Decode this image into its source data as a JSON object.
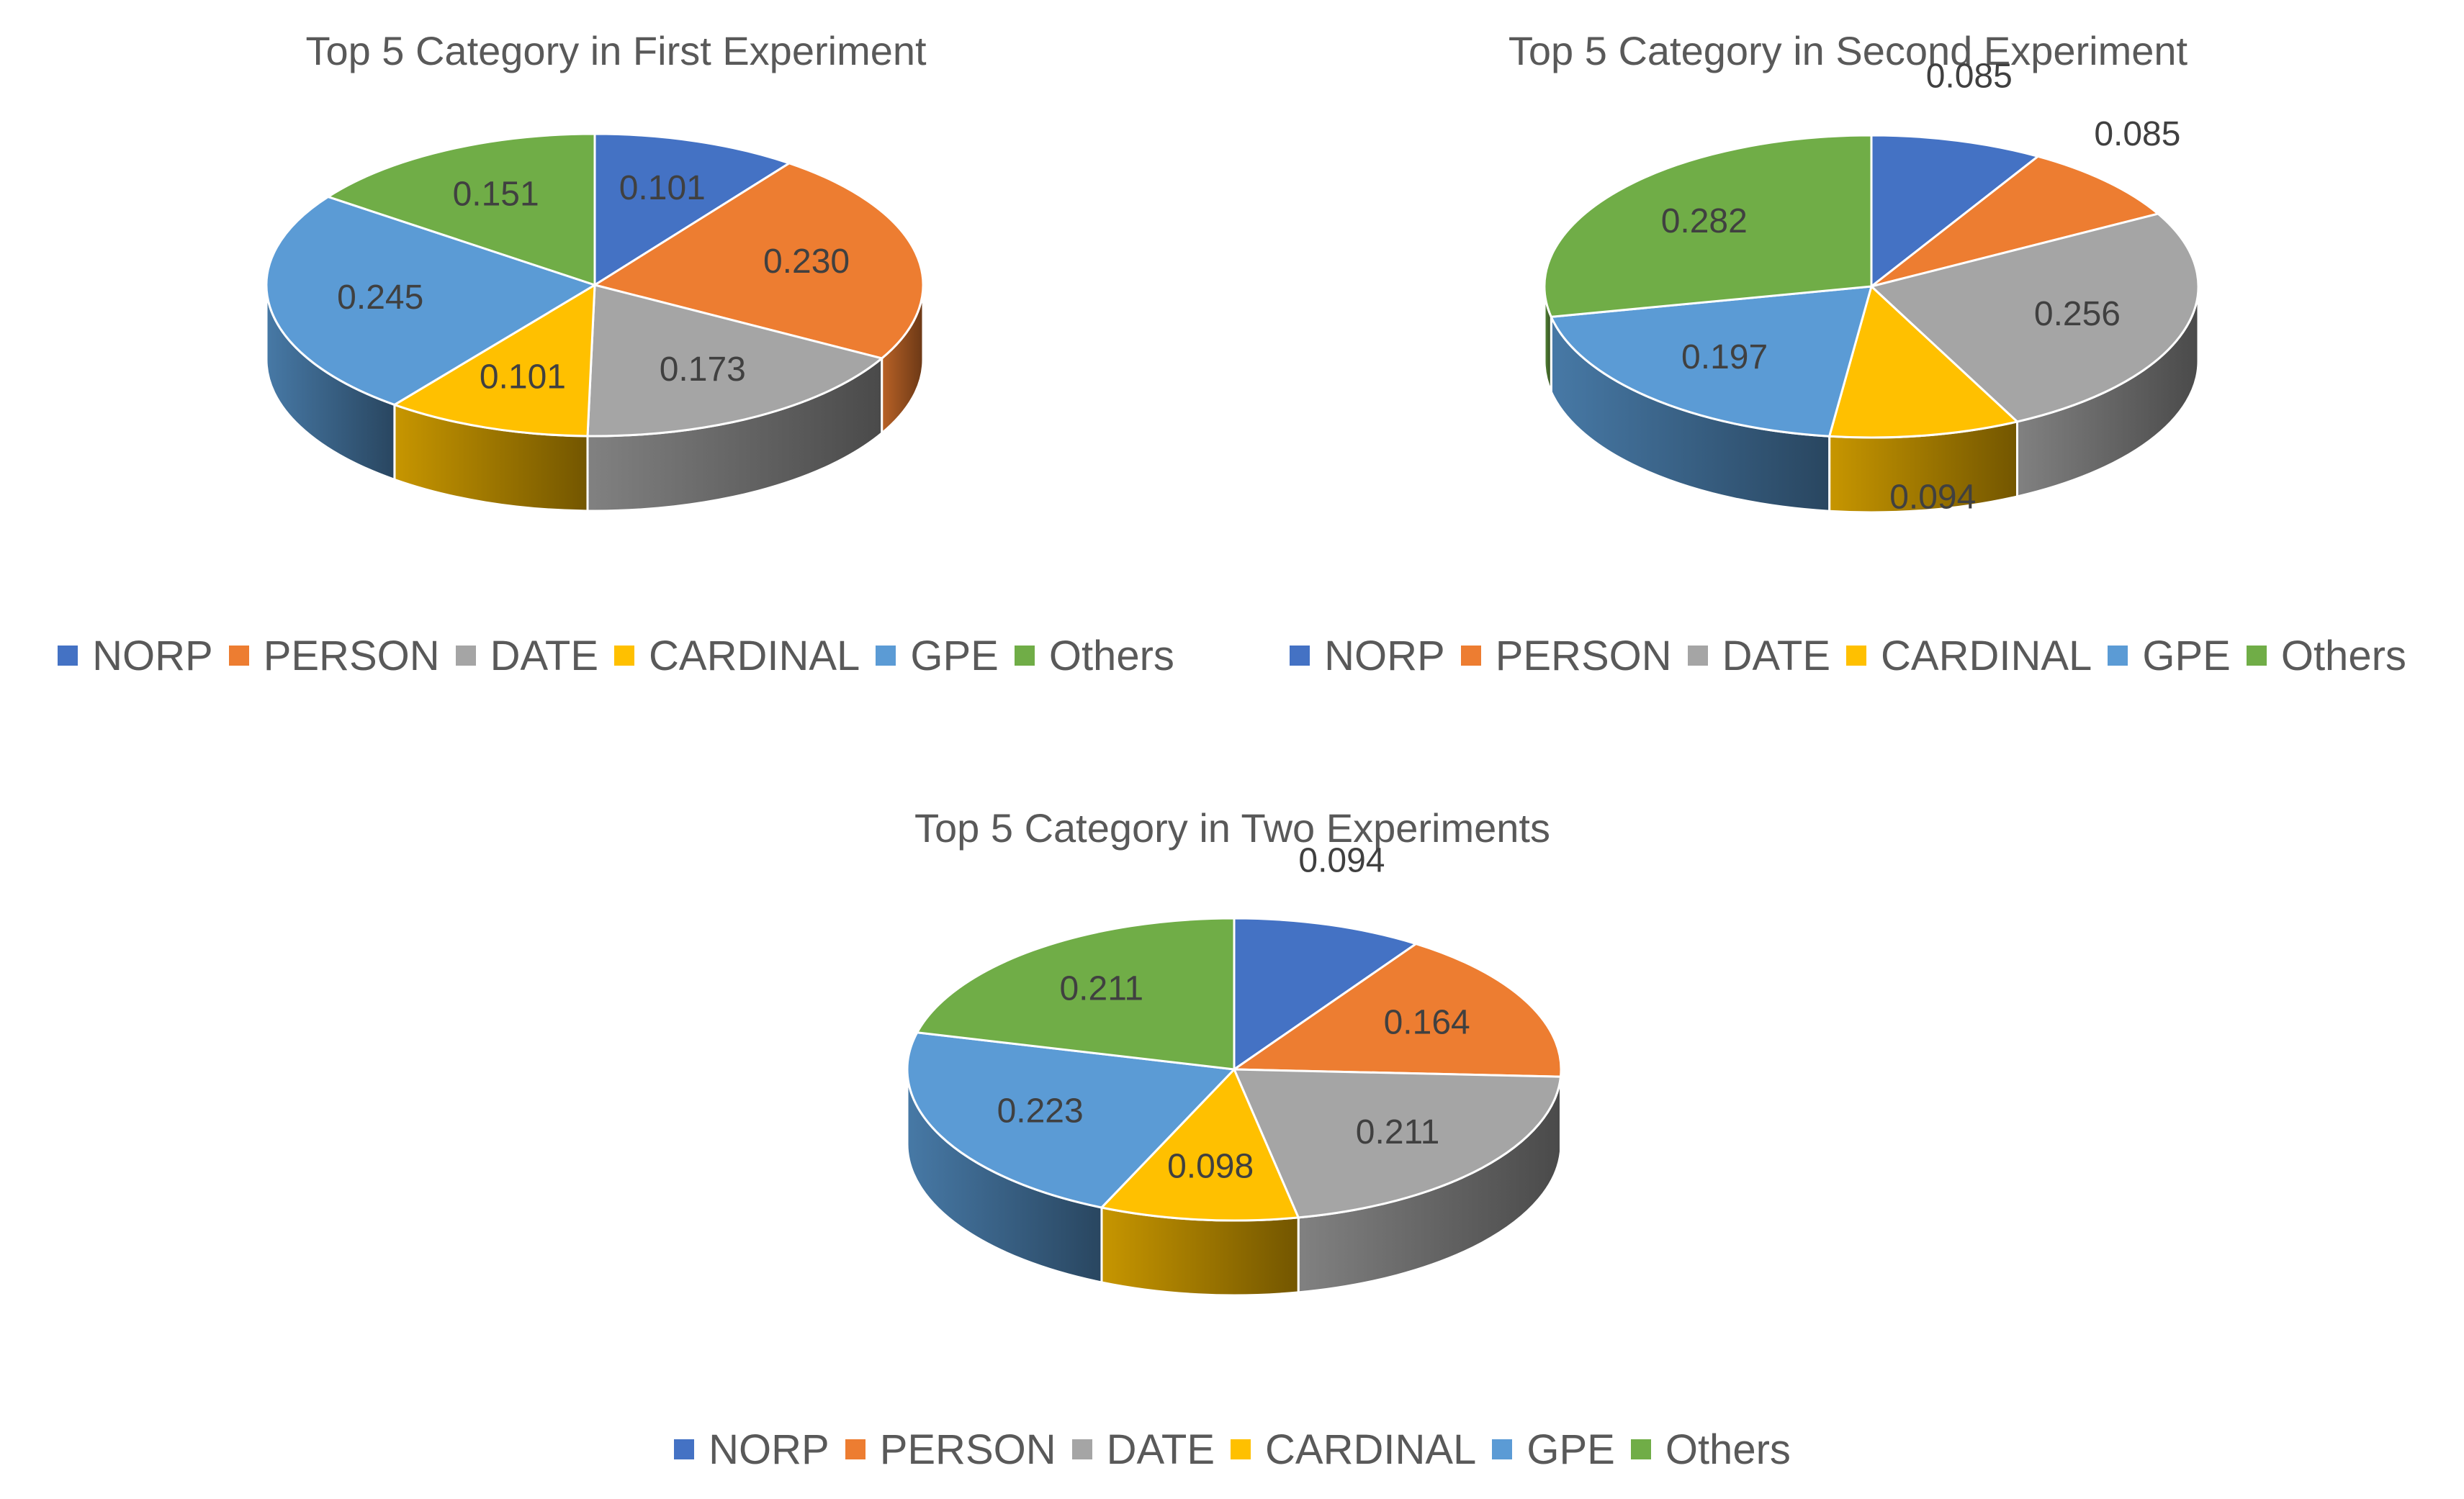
{
  "colors": {
    "NORP": "#4472C4",
    "PERSON": "#ED7D31",
    "DATE": "#A5A5A5",
    "CARDINAL": "#FFC000",
    "GPE": "#5B9BD5",
    "Others": "#70AD47"
  },
  "chart_data": [
    {
      "type": "pie",
      "style": "3d",
      "title": "Top 5 Category in First Experiment",
      "categories": [
        "NORP",
        "PERSON",
        "DATE",
        "CARDINAL",
        "GPE",
        "Others"
      ],
      "values": [
        0.101,
        0.23,
        0.173,
        0.101,
        0.245,
        0.151
      ],
      "labels": [
        "0.101",
        "0.230",
        "0.173",
        "0.101",
        "0.245",
        "0.151"
      ],
      "legend": "bottom"
    },
    {
      "type": "pie",
      "style": "3d",
      "title": "Top 5 Category in Second Experiment",
      "categories": [
        "NORP",
        "PERSON",
        "DATE",
        "CARDINAL",
        "GPE",
        "Others"
      ],
      "values": [
        0.085,
        0.085,
        0.256,
        0.094,
        0.197,
        0.282
      ],
      "labels": [
        "0.085",
        "0.085",
        "0.256",
        "0.094",
        "0.197",
        "0.282"
      ],
      "legend": "bottom"
    },
    {
      "type": "pie",
      "style": "3d",
      "title": "Top 5 Category in Two Experiments",
      "categories": [
        "NORP",
        "PERSON",
        "DATE",
        "CARDINAL",
        "GPE",
        "Others"
      ],
      "values": [
        0.094,
        0.164,
        0.211,
        0.098,
        0.223,
        0.211
      ],
      "labels": [
        "0.094",
        "0.164",
        "0.211",
        "0.098",
        "0.223",
        "0.211"
      ],
      "legend": "bottom"
    }
  ]
}
